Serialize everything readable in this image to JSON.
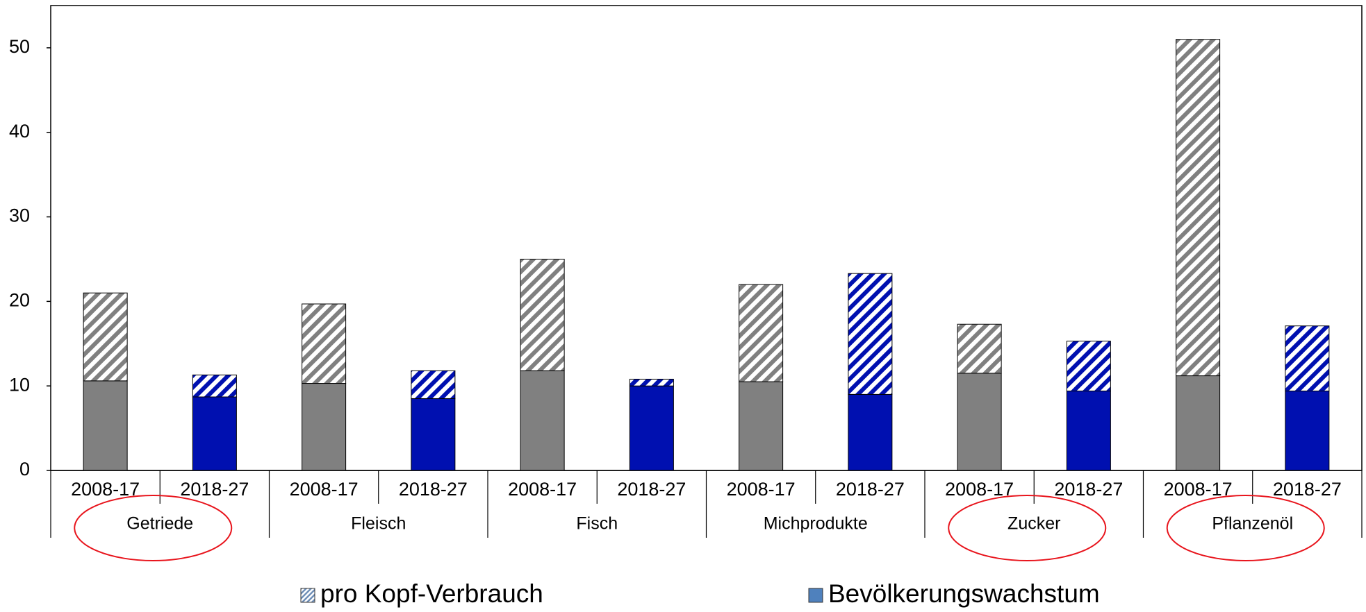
{
  "chart_data": {
    "type": "stacked_bar",
    "categories": [
      "2008-17",
      "2018-27",
      "2008-17",
      "2018-27",
      "2008-17",
      "2018-27",
      "2008-17",
      "2018-27",
      "2008-17",
      "2018-27",
      "2008-17",
      "2018-27"
    ],
    "groups": [
      "Getriede",
      "Fleisch",
      "Fisch",
      "Michprodukte",
      "Zucker",
      "Pflanzenöl"
    ],
    "highlighted_groups": [
      0,
      4,
      5
    ],
    "period_colors": [
      "#808080",
      "#0010b0"
    ],
    "series": [
      {
        "name": "Bevölkerungswachstum",
        "color": "#4f81bd",
        "values": [
          10.6,
          8.7,
          10.3,
          8.5,
          11.8,
          10.0,
          10.5,
          9.0,
          11.5,
          9.4,
          11.2,
          9.4
        ]
      },
      {
        "name": "pro Kopf-Verbrauch",
        "color": "#8ea9c8",
        "hatched": true,
        "values": [
          10.4,
          2.6,
          9.4,
          3.3,
          13.2,
          0.8,
          11.5,
          14.3,
          5.8,
          5.9,
          39.8,
          7.7
        ]
      }
    ],
    "ylim": [
      0,
      55
    ],
    "yticks": [
      0,
      10,
      20,
      30,
      40,
      50
    ],
    "grid": false
  }
}
